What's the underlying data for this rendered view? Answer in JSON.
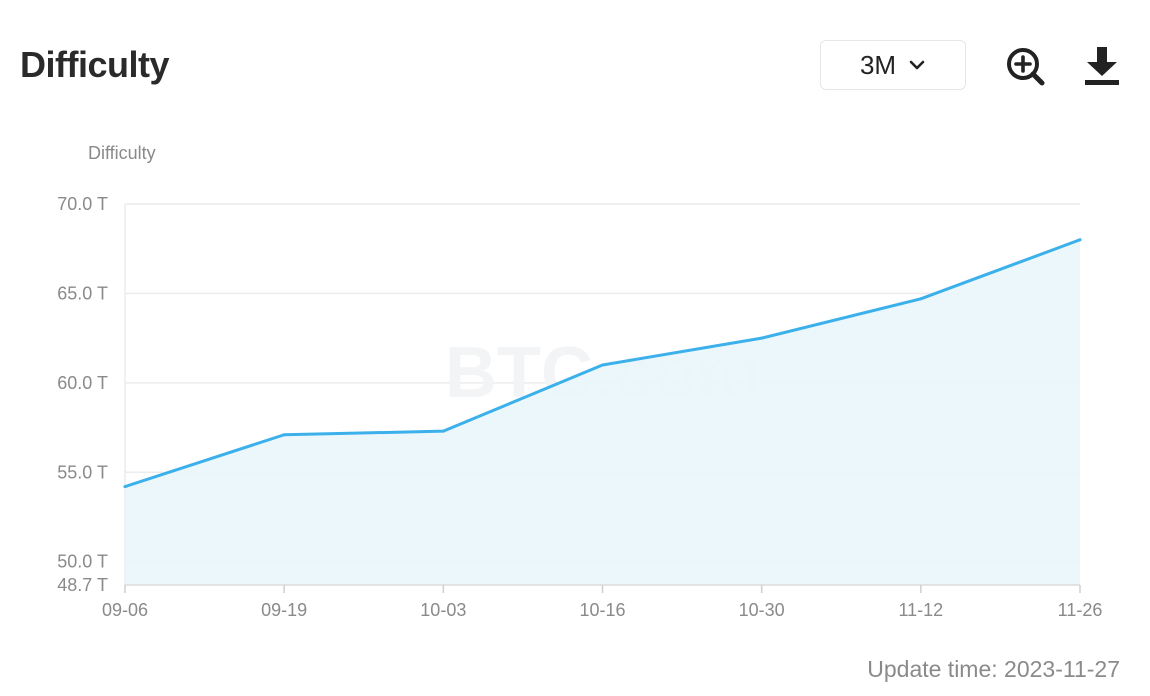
{
  "header": {
    "title": "Difficulty",
    "range_value": "3M"
  },
  "icons": {
    "range_chevron": "chevron-down-icon",
    "zoom": "zoom-in-icon",
    "download": "download-icon"
  },
  "watermark": "BTC.com",
  "colors": {
    "line": "#3cb0ea",
    "area": "#eaf6fc",
    "grid": "#ececec",
    "axis_text": "#8a8a8a"
  },
  "chart_data": {
    "type": "area",
    "ylabel": "Difficulty",
    "xlabel": "",
    "title": "",
    "x": [
      "09-06",
      "09-19",
      "10-03",
      "10-16",
      "10-30",
      "11-12",
      "11-26"
    ],
    "series": [
      {
        "values": [
          54.2,
          57.1,
          57.3,
          61.0,
          62.5,
          64.7,
          68.0
        ]
      }
    ],
    "ylim": [
      48.7,
      70.0
    ],
    "yticks": [
      "70.0 T",
      "65.0 T",
      "60.0 T",
      "55.0 T",
      "50.0 T",
      "48.7 T"
    ],
    "ytick_values": [
      70.0,
      65.0,
      60.0,
      55.0,
      50.0,
      48.7
    ],
    "grid": true,
    "legend": "none"
  },
  "footer": {
    "update_label": "Update time:",
    "update_date": "2023-11-27"
  }
}
